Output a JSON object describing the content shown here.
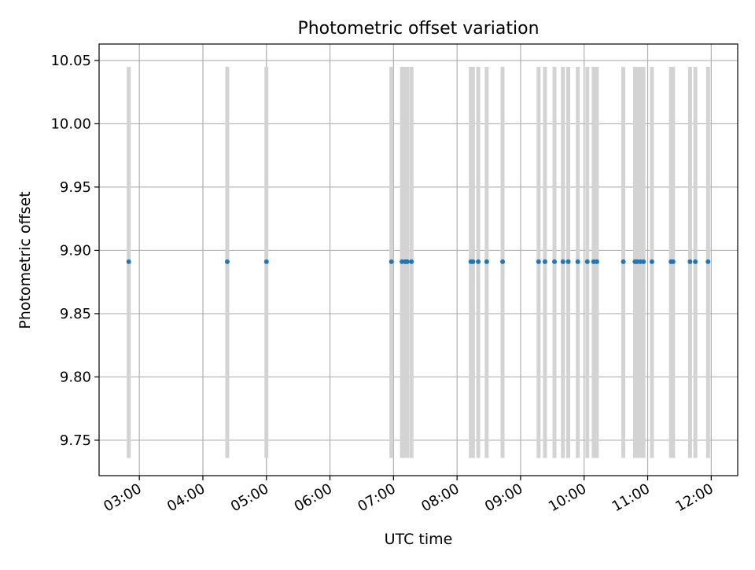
{
  "chart_data": {
    "type": "scatter",
    "title": "Photometric offset variation",
    "xlabel": "UTC time",
    "ylabel": "Photometric offset",
    "xlim": [
      "02:22",
      "12:25"
    ],
    "ylim": [
      9.722,
      10.063
    ],
    "grid": true,
    "x_ticks": [
      "03:00",
      "04:00",
      "05:00",
      "06:00",
      "07:00",
      "08:00",
      "09:00",
      "10:00",
      "11:00",
      "12:00"
    ],
    "y_ticks": [
      "9.75",
      "9.80",
      "9.85",
      "9.90",
      "9.95",
      "10.00",
      "10.05"
    ],
    "errorbar_range": [
      9.736,
      10.045
    ],
    "points": [
      {
        "x": "02:50",
        "y": 9.891
      },
      {
        "x": "04:23",
        "y": 9.891
      },
      {
        "x": "05:00",
        "y": 9.891
      },
      {
        "x": "06:58",
        "y": 9.891
      },
      {
        "x": "07:08",
        "y": 9.891
      },
      {
        "x": "07:11",
        "y": 9.891
      },
      {
        "x": "07:13",
        "y": 9.891
      },
      {
        "x": "07:17",
        "y": 9.891
      },
      {
        "x": "08:13",
        "y": 9.891
      },
      {
        "x": "08:15",
        "y": 9.891
      },
      {
        "x": "08:20",
        "y": 9.891
      },
      {
        "x": "08:28",
        "y": 9.891
      },
      {
        "x": "08:43",
        "y": 9.891
      },
      {
        "x": "09:17",
        "y": 9.891
      },
      {
        "x": "09:23",
        "y": 9.891
      },
      {
        "x": "09:32",
        "y": 9.891
      },
      {
        "x": "09:40",
        "y": 9.891
      },
      {
        "x": "09:45",
        "y": 9.891
      },
      {
        "x": "09:54",
        "y": 9.891
      },
      {
        "x": "10:03",
        "y": 9.891
      },
      {
        "x": "10:09",
        "y": 9.891
      },
      {
        "x": "10:12",
        "y": 9.891
      },
      {
        "x": "10:37",
        "y": 9.891
      },
      {
        "x": "10:48",
        "y": 9.891
      },
      {
        "x": "10:50",
        "y": 9.891
      },
      {
        "x": "10:53",
        "y": 9.891
      },
      {
        "x": "10:56",
        "y": 9.891
      },
      {
        "x": "11:04",
        "y": 9.891
      },
      {
        "x": "11:22",
        "y": 9.891
      },
      {
        "x": "11:24",
        "y": 9.891
      },
      {
        "x": "11:40",
        "y": 9.891
      },
      {
        "x": "11:45",
        "y": 9.891
      },
      {
        "x": "11:57",
        "y": 9.891
      }
    ],
    "colors": {
      "marker": "#1f77b4",
      "errorbar": "#d3d3d3",
      "grid": "#b0b0b0",
      "axes": "#000000"
    }
  }
}
